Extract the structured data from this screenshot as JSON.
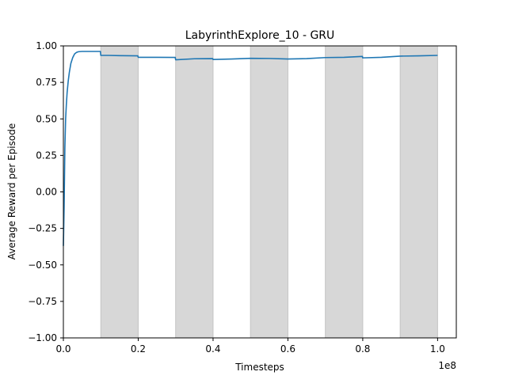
{
  "chart_data": {
    "type": "line",
    "title": "LabyrinthExplore_10 - GRU",
    "xlabel": "Timesteps",
    "ylabel": "Average Reward per Episode",
    "x_offset_label": "1e8",
    "xlim": [
      0.0,
      1.05
    ],
    "ylim": [
      -1.0,
      1.0
    ],
    "x_ticks": [
      0.0,
      0.2,
      0.4,
      0.6,
      0.8,
      1.0
    ],
    "x_tick_labels": [
      "0.0",
      "0.2",
      "0.4",
      "0.6",
      "0.8",
      "1.0"
    ],
    "y_ticks": [
      -1.0,
      -0.75,
      -0.5,
      -0.25,
      0.0,
      0.25,
      0.5,
      0.75,
      1.0
    ],
    "y_tick_labels": [
      "−1.00",
      "−0.75",
      "−0.50",
      "−0.25",
      "0.00",
      "0.25",
      "0.50",
      "0.75",
      "1.00"
    ],
    "grid": false,
    "shaded_regions": [
      [
        0.1,
        0.2
      ],
      [
        0.3,
        0.4
      ],
      [
        0.5,
        0.6
      ],
      [
        0.7,
        0.8
      ],
      [
        0.9,
        1.0
      ]
    ],
    "series": [
      {
        "x": [
          0.0,
          0.002,
          0.004,
          0.006,
          0.008,
          0.01,
          0.013,
          0.016,
          0.02,
          0.025,
          0.03,
          0.035,
          0.04,
          0.05,
          0.06,
          0.08,
          0.099,
          0.1,
          0.12,
          0.15,
          0.199,
          0.2,
          0.25,
          0.299,
          0.3,
          0.35,
          0.399,
          0.4,
          0.45,
          0.5,
          0.55,
          0.6,
          0.65,
          0.7,
          0.75,
          0.799,
          0.8,
          0.85,
          0.9,
          0.95,
          1.0
        ],
        "y": [
          -0.37,
          -0.1,
          0.3,
          0.5,
          0.6,
          0.68,
          0.76,
          0.82,
          0.88,
          0.92,
          0.945,
          0.955,
          0.96,
          0.962,
          0.962,
          0.962,
          0.962,
          0.935,
          0.935,
          0.933,
          0.932,
          0.922,
          0.922,
          0.921,
          0.905,
          0.912,
          0.913,
          0.907,
          0.91,
          0.915,
          0.914,
          0.91,
          0.913,
          0.92,
          0.922,
          0.928,
          0.918,
          0.922,
          0.93,
          0.932,
          0.935
        ],
        "color": "#1f77b4"
      }
    ],
    "shade_color": "#d7d7d7",
    "shade_edge_color": "#c4c4c4"
  }
}
